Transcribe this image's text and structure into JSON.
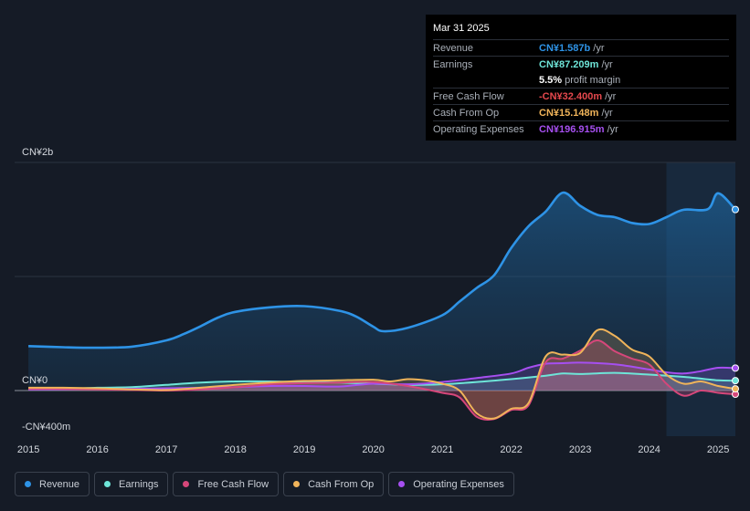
{
  "tooltip": {
    "date": "Mar 31 2025",
    "rows": [
      {
        "label": "Revenue",
        "value": "CN¥1.587b",
        "suffix": "/yr",
        "color": "#2e93e6"
      },
      {
        "label": "Earnings",
        "value": "CN¥87.209m",
        "suffix": "/yr",
        "color": "#6ee5d8"
      },
      {
        "label": "",
        "value": "5.5%",
        "suffix": "profit margin",
        "color": "#ffffff"
      },
      {
        "label": "Free Cash Flow",
        "value": "-CN¥32.400m",
        "suffix": "/yr",
        "color": "#e5484d"
      },
      {
        "label": "Cash From Op",
        "value": "CN¥15.148m",
        "suffix": "/yr",
        "color": "#f0b45a"
      },
      {
        "label": "Operating Expenses",
        "value": "CN¥196.915m",
        "suffix": "/yr",
        "color": "#a64ff0"
      }
    ]
  },
  "legend": [
    {
      "label": "Revenue",
      "color": "#2e93e6"
    },
    {
      "label": "Earnings",
      "color": "#6ee5d8"
    },
    {
      "label": "Free Cash Flow",
      "color": "#d6477a"
    },
    {
      "label": "Cash From Op",
      "color": "#f0b45a"
    },
    {
      "label": "Operating Expenses",
      "color": "#a64ff0"
    }
  ],
  "chart_data": {
    "type": "area",
    "ylim": [
      -400,
      2000
    ],
    "y_tick_labels": [
      {
        "value": 2000,
        "label": "CN¥2b"
      },
      {
        "value": 0,
        "label": "CN¥0"
      },
      {
        "value": -400,
        "label": "-CN¥400m"
      }
    ],
    "xlim": [
      2014.8,
      2025.25
    ],
    "x_ticks": [
      2015,
      2016,
      2017,
      2018,
      2019,
      2020,
      2021,
      2022,
      2023,
      2024,
      2025
    ],
    "x_tick_labels": [
      "2015",
      "2016",
      "2017",
      "2018",
      "2019",
      "2020",
      "2021",
      "2022",
      "2023",
      "2024",
      "2025"
    ],
    "highlight_from": 2024.25,
    "units": "CN¥ millions",
    "series": [
      {
        "name": "Revenue",
        "color": "#2e93e6",
        "points": [
          [
            2015,
            390
          ],
          [
            2015.5,
            380
          ],
          [
            2016,
            375
          ],
          [
            2016.5,
            385
          ],
          [
            2017,
            440
          ],
          [
            2017.25,
            495
          ],
          [
            2017.5,
            565
          ],
          [
            2017.75,
            640
          ],
          [
            2018,
            690
          ],
          [
            2018.5,
            730
          ],
          [
            2019,
            740
          ],
          [
            2019.5,
            700
          ],
          [
            2019.75,
            650
          ],
          [
            2020,
            560
          ],
          [
            2020.15,
            520
          ],
          [
            2020.5,
            550
          ],
          [
            2021,
            660
          ],
          [
            2021.25,
            780
          ],
          [
            2021.5,
            900
          ],
          [
            2021.75,
            1010
          ],
          [
            2022,
            1250
          ],
          [
            2022.25,
            1440
          ],
          [
            2022.5,
            1570
          ],
          [
            2022.75,
            1735
          ],
          [
            2023,
            1620
          ],
          [
            2023.25,
            1540
          ],
          [
            2023.5,
            1520
          ],
          [
            2023.75,
            1470
          ],
          [
            2024,
            1460
          ],
          [
            2024.25,
            1520
          ],
          [
            2024.5,
            1585
          ],
          [
            2024.85,
            1590
          ],
          [
            2025,
            1730
          ],
          [
            2025.25,
            1587
          ]
        ]
      },
      {
        "name": "Earnings",
        "color": "#6ee5d8",
        "points": [
          [
            2015,
            20
          ],
          [
            2015.5,
            15
          ],
          [
            2016,
            25
          ],
          [
            2016.5,
            30
          ],
          [
            2017,
            50
          ],
          [
            2017.5,
            70
          ],
          [
            2018,
            80
          ],
          [
            2018.5,
            80
          ],
          [
            2019,
            75
          ],
          [
            2019.5,
            70
          ],
          [
            2020,
            60
          ],
          [
            2020.5,
            50
          ],
          [
            2021,
            55
          ],
          [
            2021.5,
            75
          ],
          [
            2022,
            100
          ],
          [
            2022.5,
            130
          ],
          [
            2022.75,
            150
          ],
          [
            2023,
            145
          ],
          [
            2023.5,
            155
          ],
          [
            2024,
            140
          ],
          [
            2024.5,
            120
          ],
          [
            2025,
            90
          ],
          [
            2025.25,
            87
          ]
        ]
      },
      {
        "name": "Free Cash Flow",
        "color": "#d6477a",
        "points": [
          [
            2015,
            15
          ],
          [
            2015.5,
            15
          ],
          [
            2016,
            10
          ],
          [
            2016.5,
            5
          ],
          [
            2017,
            0
          ],
          [
            2017.5,
            10
          ],
          [
            2018,
            30
          ],
          [
            2018.5,
            55
          ],
          [
            2019,
            65
          ],
          [
            2019.5,
            70
          ],
          [
            2020,
            75
          ],
          [
            2020.5,
            40
          ],
          [
            2021,
            -20
          ],
          [
            2021.25,
            -60
          ],
          [
            2021.5,
            -230
          ],
          [
            2021.75,
            -250
          ],
          [
            2022,
            -170
          ],
          [
            2022.25,
            -130
          ],
          [
            2022.5,
            250
          ],
          [
            2022.75,
            280
          ],
          [
            2023,
            350
          ],
          [
            2023.25,
            440
          ],
          [
            2023.5,
            345
          ],
          [
            2023.75,
            280
          ],
          [
            2024,
            230
          ],
          [
            2024.25,
            60
          ],
          [
            2024.5,
            -45
          ],
          [
            2024.75,
            0
          ],
          [
            2025,
            -20
          ],
          [
            2025.25,
            -32
          ]
        ]
      },
      {
        "name": "Cash From Op",
        "color": "#f0b45a",
        "points": [
          [
            2015,
            25
          ],
          [
            2015.5,
            25
          ],
          [
            2016,
            20
          ],
          [
            2016.5,
            10
          ],
          [
            2017,
            5
          ],
          [
            2017.5,
            25
          ],
          [
            2018,
            50
          ],
          [
            2018.5,
            70
          ],
          [
            2019,
            85
          ],
          [
            2019.5,
            90
          ],
          [
            2020,
            95
          ],
          [
            2020.25,
            80
          ],
          [
            2020.5,
            100
          ],
          [
            2020.75,
            90
          ],
          [
            2021,
            60
          ],
          [
            2021.25,
            0
          ],
          [
            2021.5,
            -200
          ],
          [
            2021.75,
            -245
          ],
          [
            2022,
            -160
          ],
          [
            2022.25,
            -110
          ],
          [
            2022.5,
            300
          ],
          [
            2022.75,
            315
          ],
          [
            2023,
            330
          ],
          [
            2023.25,
            530
          ],
          [
            2023.5,
            480
          ],
          [
            2023.75,
            360
          ],
          [
            2024,
            300
          ],
          [
            2024.25,
            140
          ],
          [
            2024.5,
            60
          ],
          [
            2024.75,
            80
          ],
          [
            2025,
            40
          ],
          [
            2025.25,
            15
          ]
        ]
      },
      {
        "name": "Operating Expenses",
        "color": "#a64ff0",
        "points": [
          [
            2015,
            10
          ],
          [
            2015.5,
            12
          ],
          [
            2016,
            12
          ],
          [
            2016.5,
            15
          ],
          [
            2017,
            20
          ],
          [
            2017.5,
            25
          ],
          [
            2018,
            30
          ],
          [
            2018.5,
            40
          ],
          [
            2019,
            40
          ],
          [
            2019.5,
            35
          ],
          [
            2020,
            60
          ],
          [
            2020.5,
            55
          ],
          [
            2021,
            75
          ],
          [
            2021.5,
            110
          ],
          [
            2022,
            150
          ],
          [
            2022.25,
            200
          ],
          [
            2022.5,
            235
          ],
          [
            2022.75,
            240
          ],
          [
            2023,
            245
          ],
          [
            2023.5,
            230
          ],
          [
            2024,
            185
          ],
          [
            2024.25,
            160
          ],
          [
            2024.5,
            150
          ],
          [
            2024.75,
            170
          ],
          [
            2025,
            200
          ],
          [
            2025.25,
            197
          ]
        ]
      }
    ]
  }
}
